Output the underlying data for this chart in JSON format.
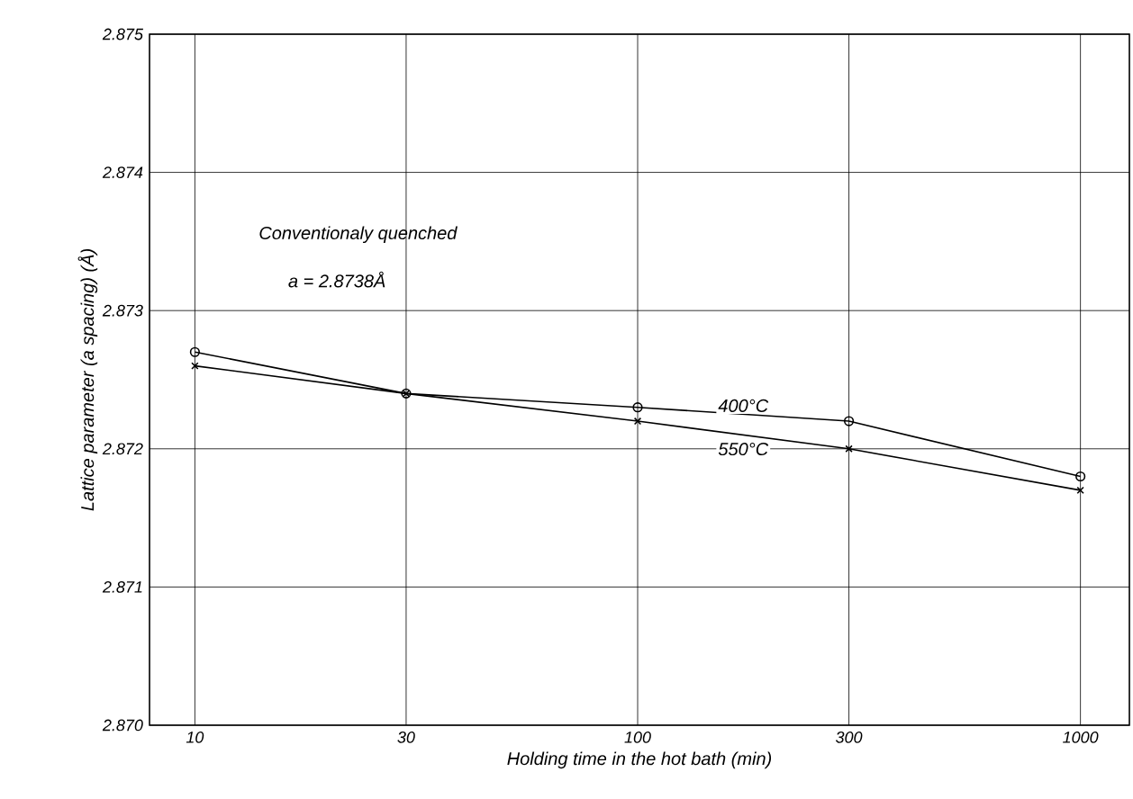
{
  "chart_data": {
    "type": "line",
    "xlabel": "Holding time in the hot bath (min)",
    "ylabel": "Lattice parameter (a spacing) (Å)",
    "annotations": [
      "Conventionaly quenched",
      "a = 2.8738Å"
    ],
    "x": [
      10,
      30,
      100,
      300,
      1000
    ],
    "series": [
      {
        "name": "400°C",
        "color": "#000000",
        "marker": "circle",
        "values": [
          2.8727,
          2.8724,
          2.8723,
          2.8722,
          2.8718
        ]
      },
      {
        "name": "550°C",
        "color": "#000000",
        "marker": "cross",
        "values": [
          2.8726,
          2.8724,
          2.8722,
          2.872,
          2.8717
        ]
      }
    ],
    "log": "x",
    "grid": true,
    "line_style": "solid",
    "xlim": [
      7.9,
      1290
    ],
    "ylim": [
      2.87,
      2.875
    ],
    "xticks": [
      10,
      30,
      100,
      300,
      1000
    ],
    "yticks": [
      {
        "value": 2.87,
        "label": "2.870"
      },
      2.871,
      2.872,
      2.873,
      2.874,
      2.875
    ]
  }
}
